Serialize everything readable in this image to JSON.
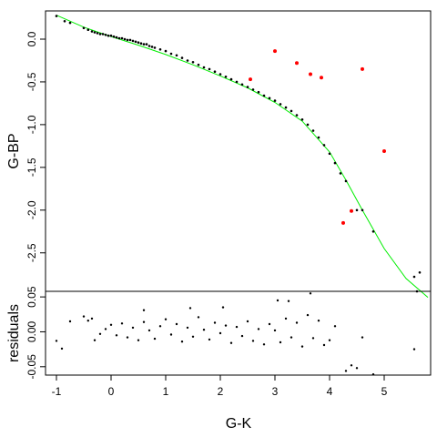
{
  "chart_data": [
    {
      "panel": "main",
      "type": "scatter",
      "xlabel": "",
      "ylabel": "G-BP",
      "xlim": [
        -1.2,
        5.85
      ],
      "ylim": [
        -2.95,
        0.33
      ],
      "x_ticks": [
        "-1",
        "0",
        "1",
        "2",
        "3",
        "4",
        "5"
      ],
      "y_ticks": [
        "0.0",
        "-0.5",
        "-1.0",
        "-1.5",
        "-2.0",
        "-2.5"
      ],
      "fit_curve": {
        "color": "#00ee00",
        "x": [
          -1.0,
          -0.5,
          0.0,
          0.5,
          1.0,
          1.5,
          2.0,
          2.5,
          3.0,
          3.5,
          4.0,
          4.3,
          4.6,
          5.0,
          5.4,
          5.8
        ],
        "y": [
          0.28,
          0.14,
          0.03,
          -0.07,
          -0.18,
          -0.3,
          -0.43,
          -0.57,
          -0.74,
          -0.96,
          -1.32,
          -1.65,
          -2.0,
          -2.45,
          -2.8,
          -3.02
        ]
      },
      "series": [
        {
          "role": "sample",
          "color": "#000000",
          "points": [
            [
              -1.0,
              0.27
            ],
            [
              -0.85,
              0.21
            ],
            [
              -0.75,
              0.19
            ],
            [
              -0.5,
              0.13
            ],
            [
              -0.42,
              0.11
            ],
            [
              -0.35,
              0.09
            ],
            [
              -0.3,
              0.08
            ],
            [
              -0.25,
              0.07
            ],
            [
              -0.2,
              0.06
            ],
            [
              -0.15,
              0.06
            ],
            [
              -0.1,
              0.05
            ],
            [
              -0.05,
              0.04
            ],
            [
              0.0,
              0.04
            ],
            [
              0.05,
              0.03
            ],
            [
              0.1,
              0.02
            ],
            [
              0.15,
              0.01
            ],
            [
              0.2,
              0.01
            ],
            [
              0.25,
              0.0
            ],
            [
              0.3,
              -0.01
            ],
            [
              0.35,
              -0.01
            ],
            [
              0.4,
              -0.02
            ],
            [
              0.45,
              -0.03
            ],
            [
              0.5,
              -0.04
            ],
            [
              0.55,
              -0.05
            ],
            [
              0.6,
              -0.06
            ],
            [
              0.65,
              -0.06
            ],
            [
              0.7,
              -0.08
            ],
            [
              0.75,
              -0.09
            ],
            [
              0.8,
              -0.1
            ],
            [
              0.9,
              -0.12
            ],
            [
              1.0,
              -0.14
            ],
            [
              1.1,
              -0.17
            ],
            [
              1.2,
              -0.19
            ],
            [
              1.3,
              -0.22
            ],
            [
              1.4,
              -0.25
            ],
            [
              1.5,
              -0.27
            ],
            [
              1.6,
              -0.3
            ],
            [
              1.7,
              -0.33
            ],
            [
              1.8,
              -0.35
            ],
            [
              1.9,
              -0.38
            ],
            [
              2.0,
              -0.41
            ],
            [
              2.1,
              -0.44
            ],
            [
              2.2,
              -0.47
            ],
            [
              2.3,
              -0.5
            ],
            [
              2.4,
              -0.53
            ],
            [
              2.5,
              -0.56
            ],
            [
              2.6,
              -0.59
            ],
            [
              2.7,
              -0.62
            ],
            [
              2.8,
              -0.66
            ],
            [
              2.9,
              -0.69
            ],
            [
              3.0,
              -0.72
            ],
            [
              3.1,
              -0.76
            ],
            [
              3.2,
              -0.8
            ],
            [
              3.3,
              -0.84
            ],
            [
              3.4,
              -0.89
            ],
            [
              3.5,
              -0.94
            ],
            [
              3.6,
              -1.0
            ],
            [
              3.7,
              -1.07
            ],
            [
              3.8,
              -1.15
            ],
            [
              3.9,
              -1.24
            ],
            [
              4.0,
              -1.34
            ],
            [
              4.1,
              -1.45
            ],
            [
              4.2,
              -1.57
            ],
            [
              4.3,
              -1.66
            ],
            [
              4.5,
              -2.0
            ],
            [
              4.6,
              -2.0
            ],
            [
              4.8,
              -2.25
            ],
            [
              5.55,
              -2.78
            ],
            [
              5.65,
              -2.73
            ],
            [
              5.6,
              -2.95
            ]
          ]
        },
        {
          "role": "outliers",
          "color": "#ff0000",
          "points": [
            [
              2.55,
              -0.47
            ],
            [
              3.0,
              -0.14
            ],
            [
              3.4,
              -0.28
            ],
            [
              3.65,
              -0.41
            ],
            [
              3.85,
              -0.45
            ],
            [
              4.6,
              -0.35
            ],
            [
              5.0,
              -1.31
            ],
            [
              4.25,
              -2.15
            ],
            [
              4.4,
              -2.01
            ]
          ]
        }
      ]
    },
    {
      "panel": "residuals",
      "type": "scatter",
      "xlabel": "G-K",
      "ylabel": "residuals",
      "xlim": [
        -1.2,
        5.85
      ],
      "ylim": [
        -0.062,
        0.058
      ],
      "x_ticks": [
        "-1",
        "0",
        "1",
        "2",
        "3",
        "4",
        "5"
      ],
      "y_ticks": [
        "0.05",
        "0.00",
        "-0.05"
      ],
      "series": [
        {
          "role": "residuals",
          "color": "#000000",
          "points": [
            [
              -1.0,
              -0.013
            ],
            [
              -0.9,
              -0.024
            ],
            [
              -0.75,
              0.015
            ],
            [
              -0.5,
              0.022
            ],
            [
              -0.42,
              0.016
            ],
            [
              -0.35,
              0.019
            ],
            [
              -0.3,
              -0.012
            ],
            [
              -0.2,
              -0.003
            ],
            [
              -0.1,
              0.004
            ],
            [
              0.0,
              0.01
            ],
            [
              0.1,
              -0.005
            ],
            [
              0.2,
              0.012
            ],
            [
              0.3,
              -0.008
            ],
            [
              0.4,
              0.006
            ],
            [
              0.5,
              -0.012
            ],
            [
              0.6,
              0.014
            ],
            [
              0.7,
              0.002
            ],
            [
              0.8,
              -0.01
            ],
            [
              0.9,
              0.008
            ],
            [
              1.0,
              0.018
            ],
            [
              1.1,
              -0.004
            ],
            [
              1.2,
              0.011
            ],
            [
              1.3,
              -0.014
            ],
            [
              1.4,
              0.006
            ],
            [
              1.5,
              -0.007
            ],
            [
              1.6,
              0.021
            ],
            [
              1.7,
              0.003
            ],
            [
              1.8,
              -0.011
            ],
            [
              1.9,
              0.013
            ],
            [
              2.0,
              -0.002
            ],
            [
              2.1,
              0.009
            ],
            [
              2.2,
              -0.016
            ],
            [
              2.3,
              0.007
            ],
            [
              2.4,
              -0.006
            ],
            [
              2.5,
              0.015
            ],
            [
              2.6,
              -0.013
            ],
            [
              2.7,
              0.004
            ],
            [
              2.8,
              -0.018
            ],
            [
              2.9,
              0.011
            ],
            [
              3.0,
              0.002
            ],
            [
              3.1,
              -0.015
            ],
            [
              3.2,
              0.019
            ],
            [
              3.3,
              -0.008
            ],
            [
              3.4,
              0.013
            ],
            [
              3.5,
              -0.021
            ],
            [
              3.6,
              0.024
            ],
            [
              3.7,
              -0.009
            ],
            [
              3.8,
              0.016
            ],
            [
              3.9,
              -0.019
            ],
            [
              4.0,
              -0.012
            ],
            [
              4.1,
              0.008
            ],
            [
              4.3,
              -0.056
            ],
            [
              4.4,
              -0.048
            ],
            [
              4.5,
              -0.052
            ],
            [
              4.6,
              -0.008
            ],
            [
              4.8,
              -0.061
            ],
            [
              5.55,
              -0.025
            ],
            [
              3.25,
              0.044
            ],
            [
              3.65,
              0.055
            ],
            [
              3.05,
              0.045
            ],
            [
              1.45,
              0.034
            ],
            [
              2.05,
              0.035
            ],
            [
              0.6,
              0.031
            ]
          ]
        }
      ]
    }
  ]
}
